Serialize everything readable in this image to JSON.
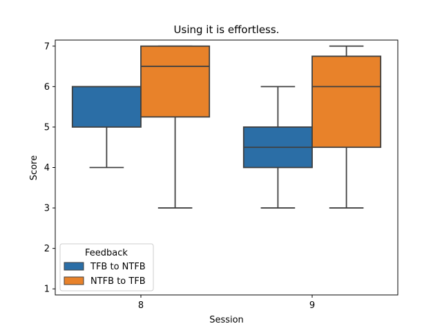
{
  "chart_data": {
    "type": "box",
    "title": "Using it is effortless.",
    "xlabel": "Session",
    "ylabel": "Score",
    "categories": [
      "8",
      "9"
    ],
    "ylim": [
      0.85,
      7.15
    ],
    "yticks": [
      1,
      2,
      3,
      4,
      5,
      6,
      7
    ],
    "grid": false,
    "legend": {
      "title": "Feedback",
      "placement": "lower-left"
    },
    "series": [
      {
        "name": "TFB to NTFB",
        "color": "#2b6ea6",
        "boxes": [
          {
            "category": "8",
            "whisker_low": 4,
            "q1": 5,
            "median": 6,
            "q3": 6,
            "whisker_high": 6
          },
          {
            "category": "9",
            "whisker_low": 3,
            "q1": 4,
            "median": 4.5,
            "q3": 5,
            "whisker_high": 6
          }
        ]
      },
      {
        "name": "NTFB to TFB",
        "color": "#e8822a",
        "boxes": [
          {
            "category": "8",
            "whisker_low": 3,
            "q1": 5.25,
            "median": 6.5,
            "q3": 7,
            "whisker_high": 7
          },
          {
            "category": "9",
            "whisker_low": 3,
            "q1": 4.5,
            "median": 6,
            "q3": 6.75,
            "whisker_high": 7
          }
        ]
      }
    ]
  }
}
